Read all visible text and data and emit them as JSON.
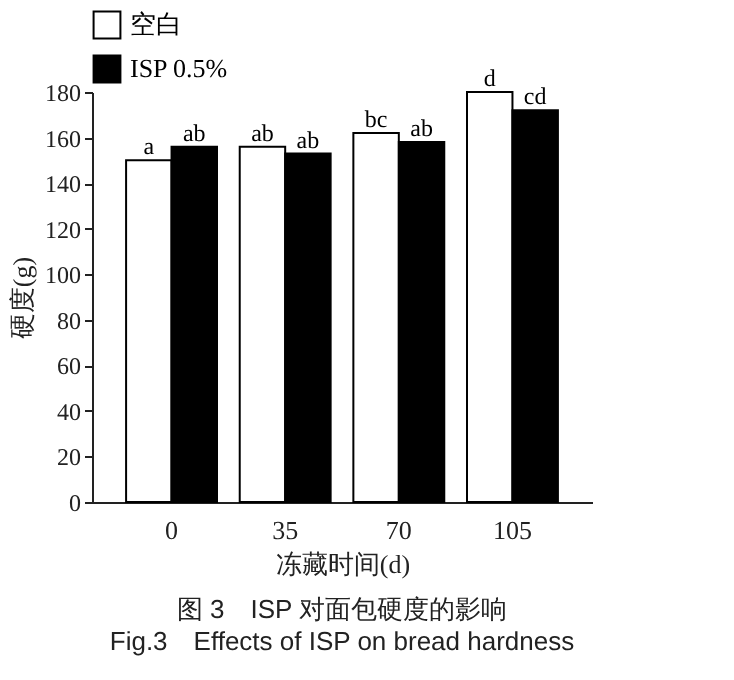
{
  "chart_data": {
    "type": "bar",
    "title": "图 3　ISP 对面包硬度的影响",
    "subtitle": "Fig.3　Effects of ISP on bread hardness",
    "xlabel": "冻藏时间(d)",
    "ylabel": "硬度(g)",
    "categories": [
      "0",
      "35",
      "70",
      "105"
    ],
    "series": [
      {
        "name": "空白",
        "color": "#ffffff",
        "values": [
          150,
          156,
          162,
          180
        ],
        "value_labels": [
          "a",
          "ab",
          "bc",
          "d"
        ]
      },
      {
        "name": "ISP 0.5%",
        "color": "#000000",
        "values": [
          156,
          153,
          158,
          172
        ],
        "value_labels": [
          "ab",
          "ab",
          "ab",
          "cd"
        ]
      }
    ],
    "ylim": [
      0,
      180
    ],
    "yticks": [
      0,
      20,
      40,
      60,
      80,
      100,
      120,
      140,
      160,
      180
    ],
    "grid": false,
    "legend": "top left"
  }
}
